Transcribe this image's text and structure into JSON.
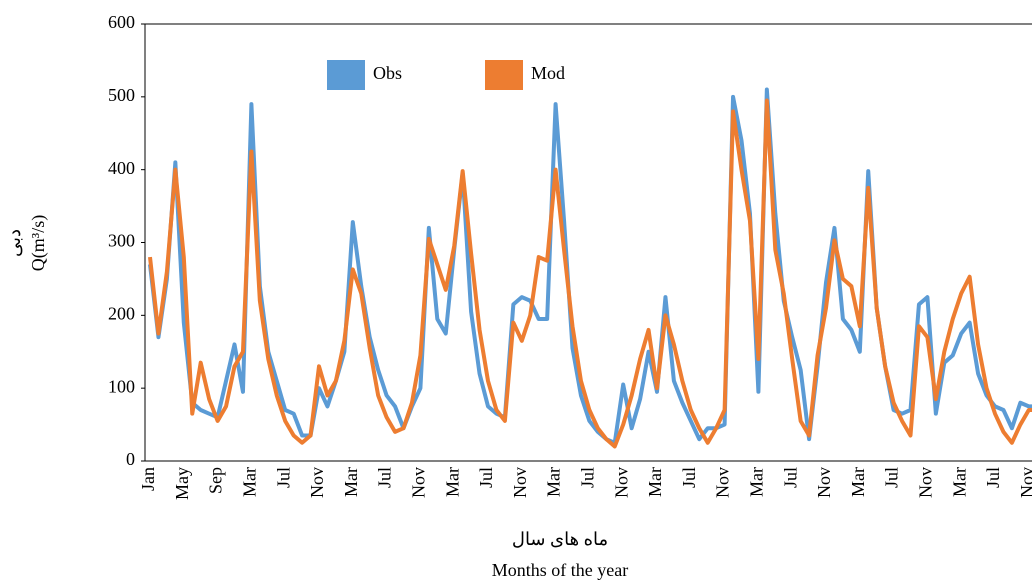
{
  "chart_data": {
    "type": "line",
    "y_label": [
      "دبی",
      "Q(m³/s)"
    ],
    "x_label": [
      "ماه های سال",
      "Months of the year"
    ],
    "categories": [
      "Jan",
      null,
      null,
      null,
      "May",
      null,
      null,
      null,
      "Sep",
      null,
      null,
      null,
      "Mar",
      null,
      null,
      null,
      "Jul",
      null,
      null,
      null,
      "Nov",
      null,
      null,
      null,
      "Mar",
      null,
      null,
      null,
      "Jul",
      null,
      null,
      null,
      "Nov",
      null,
      null,
      null,
      "Mar",
      null,
      null,
      null,
      "Jul",
      null,
      null,
      null,
      "Nov",
      null,
      null,
      null,
      "Mar",
      null,
      null,
      null,
      "Jul",
      null,
      null,
      null,
      "Nov",
      null,
      null,
      null,
      "Mar",
      null,
      null,
      null,
      "Jul",
      null,
      null,
      null,
      "Nov",
      null,
      null,
      null,
      "Mar",
      null,
      null,
      null,
      "Jul",
      null,
      null,
      null,
      "Nov",
      null,
      null,
      null,
      "Mar",
      null,
      null,
      null,
      "Jul",
      null,
      null,
      null,
      "Nov",
      null,
      null,
      null,
      "Mar",
      null,
      null,
      null,
      "Jul",
      null,
      null,
      null,
      "Nov",
      null
    ],
    "series": [
      {
        "name": "Obs",
        "color": "#5b9bd5",
        "values": [
          270,
          170,
          250,
          410,
          190,
          80,
          70,
          65,
          60,
          110,
          160,
          95,
          490,
          240,
          150,
          110,
          70,
          65,
          35,
          35,
          100,
          75,
          110,
          150,
          328,
          240,
          170,
          125,
          90,
          75,
          45,
          75,
          100,
          320,
          195,
          175,
          290,
          395,
          205,
          120,
          75,
          65,
          60,
          215,
          225,
          220,
          195,
          195,
          490,
          330,
          155,
          90,
          55,
          40,
          30,
          25,
          105,
          45,
          85,
          150,
          95,
          225,
          110,
          80,
          55,
          30,
          45,
          45,
          50,
          500,
          440,
          340,
          95,
          510,
          340,
          220,
          170,
          125,
          30,
          130,
          245,
          320,
          195,
          180,
          150,
          398,
          210,
          130,
          70,
          65,
          70,
          215,
          225,
          65,
          135,
          145,
          175,
          190,
          120,
          90,
          75,
          70,
          45,
          80,
          75,
          75
        ]
      },
      {
        "name": "Mod",
        "color": "#ed7d31",
        "values": [
          280,
          175,
          260,
          400,
          280,
          65,
          135,
          85,
          55,
          75,
          130,
          150,
          425,
          220,
          140,
          90,
          55,
          35,
          25,
          35,
          130,
          90,
          110,
          165,
          263,
          230,
          155,
          90,
          60,
          40,
          45,
          80,
          145,
          305,
          270,
          235,
          295,
          398,
          285,
          180,
          110,
          70,
          55,
          190,
          165,
          200,
          280,
          275,
          400,
          290,
          185,
          110,
          70,
          45,
          30,
          20,
          50,
          90,
          140,
          180,
          100,
          200,
          160,
          110,
          70,
          45,
          25,
          45,
          70,
          480,
          400,
          330,
          140,
          495,
          290,
          230,
          140,
          55,
          35,
          145,
          210,
          303,
          250,
          240,
          185,
          375,
          210,
          130,
          80,
          55,
          35,
          185,
          170,
          85,
          150,
          195,
          230,
          253,
          160,
          100,
          65,
          40,
          25,
          50,
          70,
          70
        ]
      }
    ],
    "ylim": [
      0,
      600
    ],
    "yticks": [
      0,
      100,
      200,
      300,
      400,
      500,
      600
    ],
    "grid": false
  }
}
